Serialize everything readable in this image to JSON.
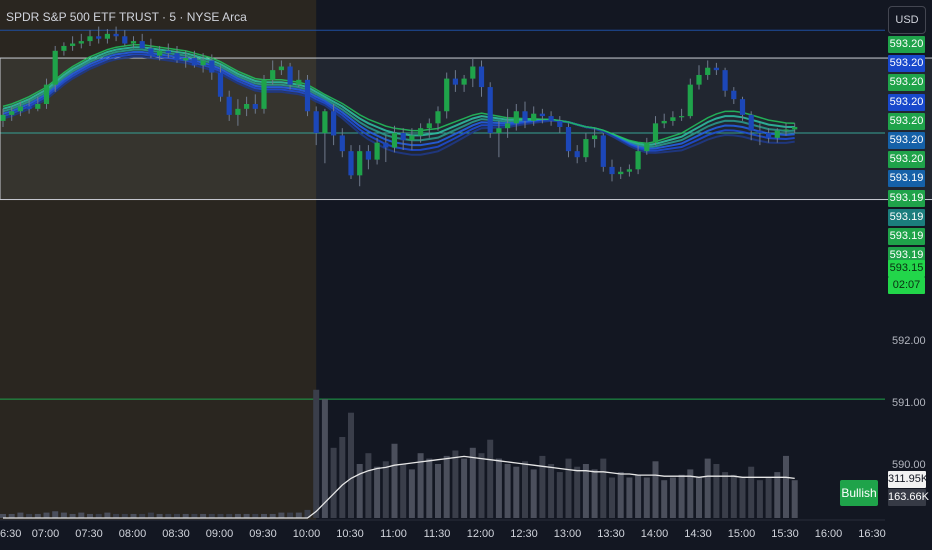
{
  "header": {
    "symbol_title": "SPDR S&P 500 ETF TRUST · 5 · NYSE Arca",
    "currency_button": "USD"
  },
  "price_labels": [
    {
      "text": "593.20",
      "color": "#1fa34a"
    },
    {
      "text": "593.20",
      "color": "#1848cc"
    },
    {
      "text": "593.20",
      "color": "#1fa34a"
    },
    {
      "text": "593.20",
      "color": "#1848cc"
    },
    {
      "text": "593.20",
      "color": "#1fa34a"
    },
    {
      "text": "593.20",
      "color": "#1561a8"
    },
    {
      "text": "593.20",
      "color": "#1fa34a"
    },
    {
      "text": "593.19",
      "color": "#1561a8"
    },
    {
      "text": "593.19",
      "color": "#1fa34a"
    },
    {
      "text": "593.19",
      "color": "#1b7d7d"
    },
    {
      "text": "593.19",
      "color": "#1fa34a"
    },
    {
      "text": "593.19",
      "color": "#1fa34a"
    }
  ],
  "current_price": {
    "price": "593.15",
    "countdown": "02:07",
    "color": "#22d64a"
  },
  "price_axis_ticks": [
    "592.00",
    "591.00",
    "590.00"
  ],
  "signal_badge": "Bullish",
  "volume_labels": {
    "volume": "311.95K",
    "volume_ma": "163.66K"
  },
  "time_axis": [
    "6:30",
    "07:00",
    "07:30",
    "08:00",
    "08:30",
    "09:00",
    "09:30",
    "10:00",
    "10:30",
    "11:00",
    "11:30",
    "12:00",
    "12:30",
    "13:00",
    "13:30",
    "14:00",
    "14:30",
    "15:00",
    "15:30",
    "16:00",
    "16:30"
  ],
  "colors": {
    "background": "#131722",
    "premarket_shade": "#2a2620",
    "up_candle": "#1fa34a",
    "down_candle": "#1c47b8",
    "level_line_blue": "#1e4fa0",
    "level_line_green": "#1fa34a",
    "range_box_border": "#c9ccd4"
  },
  "chart_data": {
    "type": "candlestick",
    "interval": "5",
    "x": [
      "06:30",
      "06:35",
      "06:40",
      "06:45",
      "06:50",
      "06:55",
      "07:00",
      "07:05",
      "07:10",
      "07:15",
      "07:20",
      "07:25",
      "07:30",
      "07:35",
      "07:40",
      "07:45",
      "07:50",
      "07:55",
      "08:00",
      "08:05",
      "08:10",
      "08:15",
      "08:20",
      "08:25",
      "08:30",
      "08:35",
      "08:40",
      "08:45",
      "08:50",
      "08:55",
      "09:00",
      "09:05",
      "09:10",
      "09:15",
      "09:20",
      "09:25",
      "09:30",
      "09:35",
      "09:40",
      "09:45",
      "09:50",
      "09:55",
      "10:00",
      "10:05",
      "10:10",
      "10:15",
      "10:20",
      "10:25",
      "10:30",
      "10:35",
      "10:40",
      "10:45",
      "10:50",
      "10:55",
      "11:00",
      "11:05",
      "11:10",
      "11:15",
      "11:20",
      "11:25",
      "11:30",
      "11:35",
      "11:40",
      "11:45",
      "11:50",
      "11:55",
      "12:00",
      "12:05",
      "12:10",
      "12:15",
      "12:20",
      "12:25",
      "12:30",
      "12:35",
      "12:40",
      "12:45",
      "12:50",
      "12:55",
      "13:00",
      "13:05",
      "13:10",
      "13:15",
      "13:20",
      "13:25",
      "13:30",
      "13:35",
      "13:40",
      "13:45",
      "13:50",
      "13:55",
      "14:00",
      "14:05"
    ],
    "open": [
      593.2,
      593.25,
      593.28,
      593.32,
      593.3,
      593.34,
      593.5,
      593.78,
      593.82,
      593.84,
      593.86,
      593.9,
      593.88,
      593.92,
      593.9,
      593.84,
      593.86,
      593.8,
      593.74,
      593.78,
      593.76,
      593.7,
      593.72,
      593.66,
      593.7,
      593.6,
      593.4,
      593.25,
      593.3,
      593.34,
      593.3,
      593.54,
      593.62,
      593.65,
      593.5,
      593.54,
      593.28,
      593.1,
      593.28,
      593.08,
      592.95,
      592.75,
      592.95,
      592.88,
      593.02,
      592.98,
      593.1,
      593.04,
      593.08,
      593.14,
      593.18,
      593.28,
      593.55,
      593.5,
      593.55,
      593.65,
      593.48,
      593.1,
      593.14,
      593.18,
      593.28,
      593.2,
      593.26,
      593.24,
      593.2,
      593.15,
      592.95,
      592.9,
      593.05,
      593.08,
      592.82,
      592.76,
      592.78,
      592.8,
      592.95,
      593.02,
      593.18,
      593.2,
      593.23,
      593.24,
      593.5,
      593.58,
      593.64,
      593.62,
      593.45,
      593.38,
      593.25,
      593.12,
      593.1,
      593.06,
      593.12,
      593.13
    ],
    "high": [
      593.3,
      593.32,
      593.36,
      593.38,
      593.4,
      593.55,
      593.82,
      593.85,
      593.9,
      593.92,
      593.95,
      593.98,
      593.96,
      593.98,
      593.95,
      593.9,
      593.92,
      593.88,
      593.82,
      593.84,
      593.82,
      593.78,
      593.78,
      593.76,
      593.75,
      593.66,
      593.45,
      593.38,
      593.4,
      593.42,
      593.58,
      593.7,
      593.7,
      593.68,
      593.62,
      593.58,
      593.32,
      593.3,
      593.34,
      593.14,
      593.0,
      593.0,
      593.0,
      593.06,
      593.08,
      593.16,
      593.14,
      593.14,
      593.18,
      593.22,
      593.32,
      593.6,
      593.62,
      593.58,
      593.72,
      593.7,
      593.52,
      593.2,
      593.3,
      593.34,
      593.36,
      593.32,
      593.3,
      593.28,
      593.24,
      593.18,
      593.0,
      593.1,
      593.14,
      593.1,
      592.88,
      592.82,
      592.84,
      593.0,
      593.06,
      593.24,
      593.26,
      593.28,
      593.3,
      593.55,
      593.66,
      593.7,
      593.68,
      593.64,
      593.48,
      593.4,
      593.28,
      593.18,
      593.14,
      593.14,
      593.18,
      593.18
    ],
    "low": [
      593.15,
      593.2,
      593.24,
      593.26,
      593.28,
      593.3,
      593.44,
      593.74,
      593.78,
      593.8,
      593.82,
      593.84,
      593.84,
      593.86,
      593.82,
      593.8,
      593.8,
      593.72,
      593.7,
      593.72,
      593.68,
      593.64,
      593.64,
      593.6,
      593.54,
      593.36,
      593.2,
      593.16,
      593.24,
      593.26,
      593.26,
      593.5,
      593.58,
      593.46,
      593.48,
      593.24,
      593.0,
      592.85,
      593.0,
      592.9,
      592.72,
      592.66,
      592.8,
      592.84,
      592.86,
      592.94,
      592.96,
      592.96,
      593.02,
      593.06,
      593.12,
      593.22,
      593.44,
      593.44,
      593.48,
      593.4,
      593.06,
      592.9,
      593.06,
      593.12,
      593.14,
      593.16,
      593.18,
      593.16,
      593.1,
      592.9,
      592.85,
      592.86,
      592.98,
      592.78,
      592.7,
      592.72,
      592.74,
      592.76,
      592.92,
      593.0,
      593.14,
      593.16,
      593.2,
      593.22,
      593.46,
      593.54,
      593.58,
      593.4,
      593.34,
      593.2,
      593.04,
      593.0,
      593.02,
      593.02,
      593.08,
      593.1
    ],
    "close": [
      593.25,
      593.28,
      593.32,
      593.3,
      593.34,
      593.5,
      593.78,
      593.82,
      593.84,
      593.86,
      593.9,
      593.88,
      593.92,
      593.9,
      593.84,
      593.86,
      593.8,
      593.74,
      593.78,
      593.76,
      593.7,
      593.72,
      593.66,
      593.7,
      593.6,
      593.4,
      593.25,
      593.3,
      593.34,
      593.3,
      593.54,
      593.62,
      593.65,
      593.5,
      593.54,
      593.28,
      593.1,
      593.28,
      593.08,
      592.95,
      592.75,
      592.95,
      592.88,
      593.02,
      592.98,
      593.1,
      593.04,
      593.08,
      593.14,
      593.18,
      593.28,
      593.55,
      593.5,
      593.55,
      593.65,
      593.48,
      593.1,
      593.14,
      593.18,
      593.28,
      593.2,
      593.26,
      593.24,
      593.2,
      593.15,
      592.95,
      592.9,
      593.05,
      593.08,
      592.82,
      592.76,
      592.78,
      592.8,
      592.95,
      593.02,
      593.18,
      593.2,
      593.23,
      593.24,
      593.5,
      593.58,
      593.64,
      593.62,
      593.45,
      593.38,
      593.25,
      593.12,
      593.1,
      593.06,
      593.12,
      593.13,
      593.15
    ],
    "ema_ribbon": [
      593.3,
      593.32,
      593.35,
      593.38,
      593.42,
      593.46,
      593.52,
      593.58,
      593.63,
      593.67,
      593.71,
      593.74,
      593.77,
      593.79,
      593.8,
      593.81,
      593.81,
      593.8,
      593.79,
      593.78,
      593.77,
      593.76,
      593.74,
      593.72,
      593.7,
      593.67,
      593.63,
      593.59,
      593.56,
      593.53,
      593.52,
      593.52,
      593.52,
      593.51,
      593.5,
      593.48,
      593.44,
      593.4,
      593.36,
      593.32,
      593.27,
      593.22,
      593.18,
      593.15,
      593.12,
      593.1,
      593.09,
      593.08,
      593.08,
      593.09,
      593.1,
      593.13,
      593.16,
      593.19,
      593.22,
      593.24,
      593.23,
      593.22,
      593.21,
      593.21,
      593.21,
      593.21,
      593.21,
      593.21,
      593.2,
      593.19,
      593.17,
      593.15,
      593.14,
      593.12,
      593.09,
      593.06,
      593.03,
      593.01,
      593.0,
      593.01,
      593.03,
      593.05,
      593.07,
      593.11,
      593.15,
      593.19,
      593.22,
      593.24,
      593.24,
      593.23,
      593.21,
      593.19,
      593.17,
      593.16,
      593.15,
      593.15
    ],
    "volume_note": "relative volume bars; axis not labeled",
    "volume": [
      3,
      3,
      4,
      3,
      3,
      4,
      5,
      4,
      3,
      4,
      3,
      3,
      4,
      3,
      3,
      3,
      3,
      4,
      3,
      3,
      3,
      3,
      3,
      3,
      3,
      3,
      3,
      3,
      3,
      3,
      3,
      3,
      4,
      4,
      4,
      6,
      95,
      88,
      52,
      60,
      78,
      40,
      48,
      38,
      42,
      55,
      40,
      36,
      48,
      44,
      40,
      46,
      50,
      44,
      52,
      48,
      58,
      44,
      40,
      38,
      42,
      36,
      46,
      40,
      34,
      44,
      38,
      40,
      36,
      44,
      30,
      34,
      30,
      32,
      30,
      42,
      28,
      30,
      32,
      36,
      30,
      44,
      40,
      34,
      32,
      30,
      38,
      28,
      30,
      34,
      46,
      28
    ],
    "volume_ma": [
      0,
      0,
      0,
      0,
      0,
      0,
      0,
      0,
      0,
      0,
      0,
      0,
      0,
      0,
      0,
      0,
      0,
      0,
      0,
      0,
      0,
      0,
      0,
      0,
      0,
      0,
      0,
      0,
      0,
      0,
      0,
      0,
      0,
      0,
      0,
      0,
      6,
      14,
      22,
      30,
      36,
      40,
      43,
      45,
      46,
      48,
      49,
      50,
      51,
      52,
      53,
      54,
      55,
      56,
      55,
      54,
      53,
      52,
      51,
      50,
      49,
      48,
      47,
      46,
      45,
      44,
      43,
      43,
      42,
      42,
      41,
      40,
      40,
      39,
      39,
      39,
      38,
      38,
      38,
      38,
      37,
      38,
      38,
      38,
      38,
      37,
      37,
      37,
      37,
      37,
      37,
      36
    ],
    "levels": [
      {
        "price": 593.95,
        "color": "blue",
        "label": ""
      },
      {
        "price": 593.1,
        "color": "teal",
        "label": ""
      },
      {
        "price": 590.9,
        "color": "green",
        "label": ""
      }
    ],
    "range_box": {
      "from": "06:30",
      "to": "16:00",
      "top": 593.72,
      "bottom": 592.55
    },
    "premarket_shade": {
      "from": "06:30",
      "to": "09:30"
    },
    "y_axis_range": [
      589.9,
      594.2
    ]
  }
}
